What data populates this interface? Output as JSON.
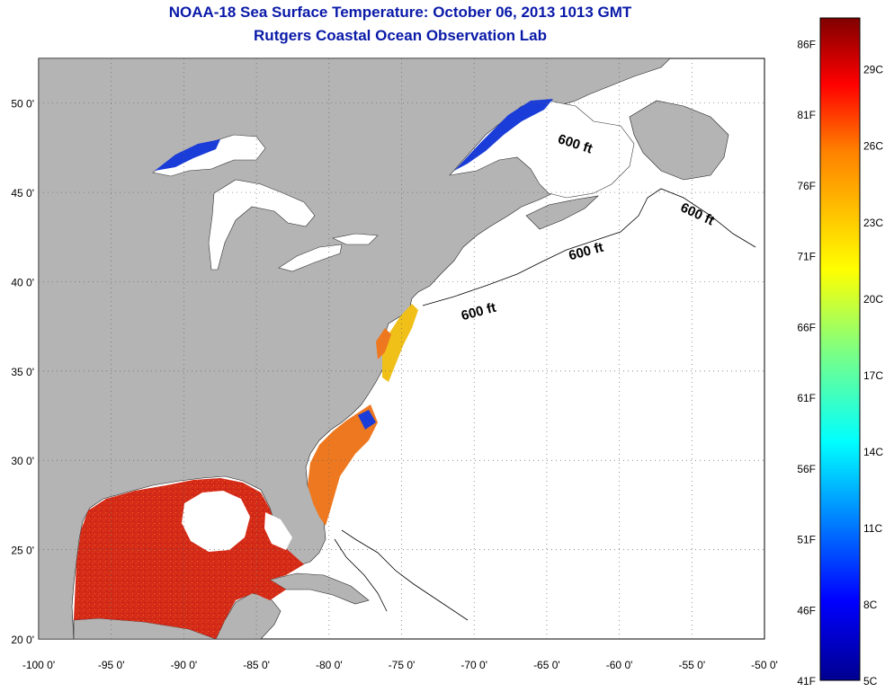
{
  "header": {
    "title": "NOAA-18 Sea Surface Temperature:  October 06, 2013 1013 GMT",
    "subtitle": "Rutgers Coastal Ocean Observation Lab"
  },
  "map": {
    "lat_labels": [
      "50 0'",
      "45 0'",
      "40 0'",
      "35 0'",
      "30 0'",
      "25 0'",
      "20 0'"
    ],
    "lon_labels": [
      "-100 0'",
      "-95 0'",
      "-90 0'",
      "-85 0'",
      "-80 0'",
      "-75 0'",
      "-70 0'",
      "-65 0'",
      "-60 0'",
      "-55 0'",
      "-50 0'"
    ],
    "lat_range": [
      20,
      52.5
    ],
    "lon_range": [
      -100,
      -50
    ],
    "grid": "dotted",
    "isobath_labels": [
      "600 ft",
      "600 ft",
      "600 ft",
      "600 ft"
    ],
    "colors": {
      "land": "#b4b4b4",
      "ocean_nodata": "#ffffff",
      "warm_sst": "#d42a18",
      "mid_sst": "#f0c018",
      "cold_sst": "#1a3cd8"
    }
  },
  "colorbar": {
    "fahrenheit_labels": [
      "86F",
      "81F",
      "76F",
      "71F",
      "66F",
      "61F",
      "56F",
      "51F",
      "46F",
      "41F"
    ],
    "celsius_labels": [
      "29C",
      "26C",
      "23C",
      "20C",
      "17C",
      "14C",
      "11C",
      "8C",
      "5C"
    ],
    "range_c": [
      5,
      31
    ],
    "colors": [
      "#00008f",
      "#0000ff",
      "#0080ff",
      "#00ffff",
      "#80ff80",
      "#ffff00",
      "#ff8000",
      "#ff0000",
      "#800000"
    ]
  }
}
